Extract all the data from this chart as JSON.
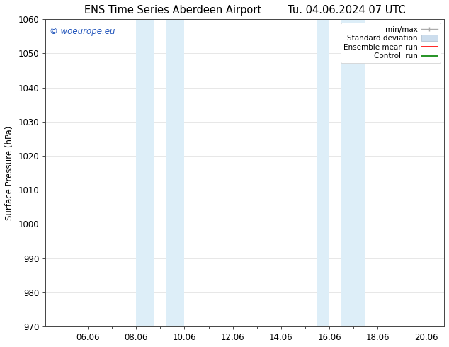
{
  "title_left": "ENS Time Series Aberdeen Airport",
  "title_right": "Tu. 04.06.2024 07 UTC",
  "ylabel": "Surface Pressure (hPa)",
  "ylim": [
    970,
    1060
  ],
  "yticks": [
    970,
    980,
    990,
    1000,
    1010,
    1020,
    1030,
    1040,
    1050,
    1060
  ],
  "xlim_start": 4.25,
  "xlim_end": 20.75,
  "xtick_labels": [
    "06.06",
    "08.06",
    "10.06",
    "12.06",
    "14.06",
    "16.06",
    "18.06",
    "20.06"
  ],
  "xtick_positions": [
    6,
    8,
    10,
    12,
    14,
    16,
    18,
    20
  ],
  "shaded_regions": [
    {
      "xmin": 8.0,
      "xmax": 8.75,
      "color": "#ddeef8"
    },
    {
      "xmin": 9.25,
      "xmax": 10.0,
      "color": "#ddeef8"
    },
    {
      "xmin": 15.5,
      "xmax": 16.0,
      "color": "#ddeef8"
    },
    {
      "xmin": 16.5,
      "xmax": 17.5,
      "color": "#ddeef8"
    }
  ],
  "watermark": "© woeurope.eu",
  "watermark_color": "#2255bb",
  "bg_color": "#ffffff",
  "grid_color": "#dddddd",
  "font_size": 8.5,
  "title_font_size": 10.5
}
